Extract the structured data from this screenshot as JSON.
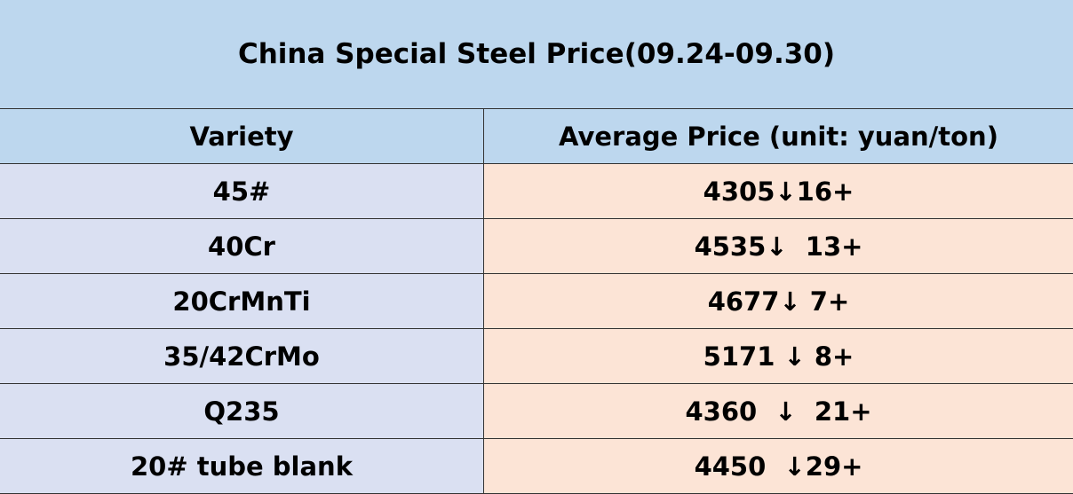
{
  "header": {
    "title": "China Special Steel Price(09.24-09.30)"
  },
  "table": {
    "columns": [
      "Variety",
      "Average Price (unit: yuan/ton)"
    ],
    "rows": [
      [
        "45#",
        "4305↓16+"
      ],
      [
        "40Cr",
        "4535↓  13+"
      ],
      [
        "20CrMnTi",
        "4677↓ 7+"
      ],
      [
        "35/42CrMo",
        "5171 ↓ 8+"
      ],
      [
        "Q235",
        "4360  ↓  21+"
      ],
      [
        "20# tube blank",
        "4450  ↓29+"
      ]
    ]
  }
}
